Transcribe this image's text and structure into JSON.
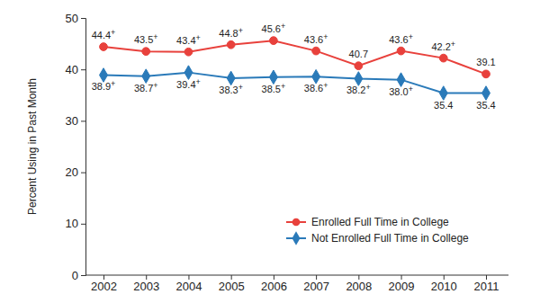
{
  "chart_data": {
    "type": "line",
    "y_label": "Percent Using in Past Month",
    "categories": [
      "2002",
      "2003",
      "2004",
      "2005",
      "2006",
      "2007",
      "2008",
      "2009",
      "2010",
      "2011"
    ],
    "series": [
      {
        "name": "Enrolled Full Time in College",
        "color": "#e8413c",
        "marker": "circle",
        "line_style": "solid",
        "values": [
          44.4,
          43.5,
          43.4,
          44.8,
          45.6,
          43.6,
          40.7,
          43.6,
          42.2,
          39.1
        ],
        "value_labels": [
          "44.4+",
          "43.5+",
          "43.4+",
          "44.8+",
          "45.6+",
          "43.6+",
          "40.7",
          "43.6+",
          "42.2+",
          "39.1"
        ]
      },
      {
        "name": "Not Enrolled Full Time in College",
        "color": "#2a7ab9",
        "marker": "diamond",
        "line_style": "solid",
        "values": [
          38.9,
          38.7,
          39.4,
          38.3,
          38.5,
          38.6,
          38.2,
          38.0,
          35.4,
          35.4
        ],
        "value_labels": [
          "38.9+",
          "38.7+",
          "39.4+",
          "38.3+",
          "38.5+",
          "38.6+",
          "38.2+",
          "38.0+",
          "35.4",
          "35.4"
        ]
      }
    ],
    "ylim": [
      0,
      50
    ],
    "yticks": [
      0,
      10,
      20,
      30,
      40,
      50
    ],
    "data_labels": true,
    "legend": "lower right",
    "grid": false
  }
}
